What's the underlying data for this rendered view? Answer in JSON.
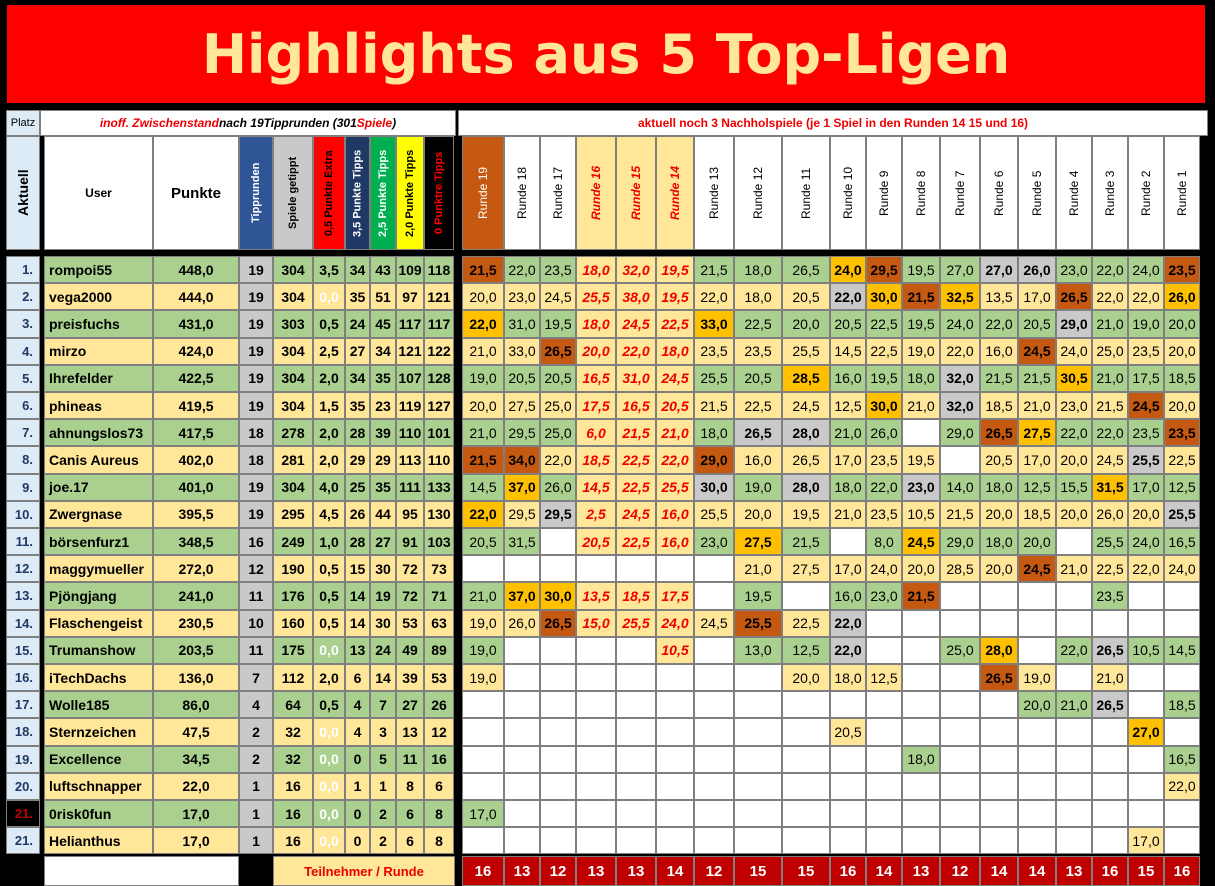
{
  "title": "Highlights aus 5 Top-Ligen",
  "header": {
    "platz": "Platz",
    "aktuell": "Aktuell",
    "status_note": "inoff. Zwischenstand nach 19Tipprunden (301 Spiele )",
    "status_note_parts": [
      "inoff. Zwischenstand",
      "nach 19Tipprunden (301",
      "Spiele",
      ")"
    ],
    "nachhol_note": "aktuell noch 3 Nachholspiele (je 1 Spiel in den Runden 14 15 und 16)",
    "user": "User",
    "punkte": "Punkte",
    "stat_columns": [
      "Tipprunden",
      "Spiele getippt",
      "0,5 Punkte Extra",
      "3,5 Punkte Tipps",
      "2,5 Punkte Tipps",
      "2,0 Punkte Tipps",
      "0 Punktre Tipps"
    ],
    "rounds": [
      "Runde 19",
      "Runde 18",
      "Runde 17",
      "Runde 16",
      "Runde 15",
      "Runde 14",
      "Runde 13",
      "Runde 12",
      "Runde 11",
      "Runde 10",
      "Runde 9",
      "Runde 8",
      "Runde 7",
      "Runde 6",
      "Runde 5",
      "Runde 4",
      "Runde 3",
      "Runde 2",
      "Runde 1"
    ],
    "highlighted_rounds": [
      "Runde 16",
      "Runde 15",
      "Runde 14"
    ]
  },
  "footer": {
    "label": "Teilnehmer / Runde",
    "counts": [
      "16",
      "13",
      "12",
      "13",
      "13",
      "14",
      "12",
      "15",
      "15",
      "16",
      "14",
      "13",
      "12",
      "14",
      "14",
      "13",
      "16",
      "15",
      "16"
    ]
  },
  "colors": {
    "title_bg": "#ff0000",
    "title_fg": "#ffe699",
    "green": "#a9d08e",
    "cream": "#ffe699",
    "gold": "#ffc000",
    "brown": "#c65911",
    "gray": "#c9c9c9",
    "darkred": "#c00000"
  },
  "rows": [
    {
      "rank": "1.",
      "user": "rompoi55",
      "points": "448,0",
      "stats": [
        "19",
        "304",
        "3,5",
        "34",
        "43",
        "109",
        "118"
      ],
      "rounds": [
        "21,5",
        "22,0",
        "23,5",
        "18,0",
        "32,0",
        "19,5",
        "21,5",
        "18,0",
        "26,5",
        "24,0",
        "29,5",
        "19,5",
        "27,0",
        "27,0",
        "26,0",
        "23,0",
        "22,0",
        "24,0",
        "23,5"
      ],
      "marks": [
        "B",
        "",
        "",
        "",
        "",
        "",
        "",
        "",
        "",
        "O",
        "B",
        "",
        "",
        "G",
        "G",
        "",
        "",
        "",
        "B"
      ]
    },
    {
      "rank": "2.",
      "user": "vega2000",
      "points": "444,0",
      "stats": [
        "19",
        "304",
        "0,0",
        "35",
        "51",
        "97",
        "121"
      ],
      "rounds": [
        "20,0",
        "23,0",
        "24,5",
        "25,5",
        "38,0",
        "19,5",
        "22,0",
        "18,0",
        "20,5",
        "22,0",
        "30,0",
        "21,5",
        "32,5",
        "13,5",
        "17,0",
        "26,5",
        "22,0",
        "22,0",
        "26,0"
      ],
      "marks": [
        "",
        "",
        "",
        "",
        "",
        "",
        "",
        "",
        "",
        "G",
        "O",
        "B",
        "O",
        "",
        "",
        "B",
        "",
        "",
        "O"
      ]
    },
    {
      "rank": "3.",
      "user": "preisfuchs",
      "points": "431,0",
      "stats": [
        "19",
        "303",
        "0,5",
        "24",
        "45",
        "117",
        "117"
      ],
      "rounds": [
        "22,0",
        "31,0",
        "19,5",
        "18,0",
        "24,5",
        "22,5",
        "33,0",
        "22,5",
        "20,0",
        "20,5",
        "22,5",
        "19,5",
        "24,0",
        "22,0",
        "20,5",
        "29,0",
        "21,0",
        "19,0",
        "20,0"
      ],
      "marks": [
        "O",
        "",
        "",
        "",
        "",
        "",
        "O",
        "",
        "",
        "",
        "",
        "",
        "",
        "",
        "",
        "G",
        "",
        "",
        ""
      ]
    },
    {
      "rank": "4.",
      "user": "mirzo",
      "points": "424,0",
      "stats": [
        "19",
        "304",
        "2,5",
        "27",
        "34",
        "121",
        "122"
      ],
      "rounds": [
        "21,0",
        "33,0",
        "26,5",
        "20,0",
        "22,0",
        "18,0",
        "23,5",
        "23,5",
        "25,5",
        "14,5",
        "22,5",
        "19,0",
        "22,0",
        "16,0",
        "24,5",
        "24,0",
        "25,0",
        "23,5",
        "20,0"
      ],
      "marks": [
        "",
        "",
        "B",
        "",
        "",
        "",
        "",
        "",
        "",
        "",
        "",
        "",
        "",
        "",
        "B",
        "",
        "",
        "",
        ""
      ]
    },
    {
      "rank": "5.",
      "user": "Ihrefelder",
      "points": "422,5",
      "stats": [
        "19",
        "304",
        "2,0",
        "34",
        "35",
        "107",
        "128"
      ],
      "rounds": [
        "19,0",
        "20,5",
        "20,5",
        "16,5",
        "31,0",
        "24,5",
        "25,5",
        "20,5",
        "28,5",
        "16,0",
        "19,5",
        "18,0",
        "32,0",
        "21,5",
        "21,5",
        "30,5",
        "21,0",
        "17,5",
        "18,5"
      ],
      "marks": [
        "",
        "",
        "",
        "",
        "",
        "",
        "",
        "",
        "O",
        "",
        "",
        "",
        "G",
        "",
        "",
        "O",
        "",
        "",
        ""
      ]
    },
    {
      "rank": "6.",
      "user": "phineas",
      "points": "419,5",
      "stats": [
        "19",
        "304",
        "1,5",
        "35",
        "23",
        "119",
        "127"
      ],
      "rounds": [
        "20,0",
        "27,5",
        "25,0",
        "17,5",
        "16,5",
        "20,5",
        "21,5",
        "22,5",
        "24,5",
        "12,5",
        "30,0",
        "21,0",
        "32,0",
        "18,5",
        "21,0",
        "23,0",
        "21,5",
        "24,5",
        "20,0"
      ],
      "marks": [
        "",
        "",
        "",
        "",
        "",
        "",
        "",
        "",
        "",
        "",
        "O",
        "",
        "G",
        "",
        "",
        "",
        "",
        "B",
        ""
      ]
    },
    {
      "rank": "7.",
      "user": "ahnungslos73",
      "points": "417,5",
      "stats": [
        "18",
        "278",
        "2,0",
        "28",
        "39",
        "110",
        "101"
      ],
      "rounds": [
        "21,0",
        "29,5",
        "25,0",
        "6,0",
        "21,5",
        "21,0",
        "18,0",
        "26,5",
        "28,0",
        "21,0",
        "26,0",
        "",
        "29,0",
        "26,5",
        "27,5",
        "22,0",
        "22,0",
        "23,5",
        "23,5"
      ],
      "marks": [
        "",
        "",
        "",
        "",
        "",
        "",
        "",
        "G",
        "G",
        "",
        "",
        "",
        "",
        "B",
        "O",
        "",
        "",
        "",
        "B"
      ]
    },
    {
      "rank": "8.",
      "user": "Canis Aureus",
      "points": "402,0",
      "stats": [
        "18",
        "281",
        "2,0",
        "29",
        "29",
        "113",
        "110"
      ],
      "rounds": [
        "21,5",
        "34,0",
        "22,0",
        "18,5",
        "22,5",
        "22,0",
        "29,0",
        "16,0",
        "26,5",
        "17,0",
        "23,5",
        "19,5",
        "",
        "20,5",
        "17,0",
        "20,0",
        "24,5",
        "25,5",
        "22,5"
      ],
      "marks": [
        "B",
        "B",
        "",
        "",
        "",
        "",
        "B",
        "",
        "",
        "",
        "",
        "",
        "",
        "",
        "",
        "",
        "",
        "G",
        ""
      ]
    },
    {
      "rank": "9.",
      "user": "joe.17",
      "points": "401,0",
      "stats": [
        "19",
        "304",
        "4,0",
        "25",
        "35",
        "111",
        "133"
      ],
      "rounds": [
        "14,5",
        "37,0",
        "26,0",
        "14,5",
        "22,5",
        "25,5",
        "30,0",
        "19,0",
        "28,0",
        "18,0",
        "22,0",
        "23,0",
        "14,0",
        "18,0",
        "12,5",
        "15,5",
        "31,5",
        "17,0",
        "12,5"
      ],
      "marks": [
        "",
        "O",
        "",
        "",
        "",
        "",
        "G",
        "",
        "G",
        "",
        "",
        "G",
        "",
        "",
        "",
        "",
        "O",
        "",
        ""
      ]
    },
    {
      "rank": "10.",
      "user": "Zwergnase",
      "points": "395,5",
      "stats": [
        "19",
        "295",
        "4,5",
        "26",
        "44",
        "95",
        "130"
      ],
      "rounds": [
        "22,0",
        "29,5",
        "29,5",
        "2,5",
        "24,5",
        "16,0",
        "25,5",
        "20,0",
        "19,5",
        "21,0",
        "23,5",
        "10,5",
        "21,5",
        "20,0",
        "18,5",
        "20,0",
        "26,0",
        "20,0",
        "25,5"
      ],
      "marks": [
        "O",
        "",
        "G",
        "",
        "",
        "",
        "",
        "",
        "",
        "",
        "",
        "",
        "",
        "",
        "",
        "",
        "",
        "",
        "G"
      ]
    },
    {
      "rank": "11.",
      "user": "börsenfurz1",
      "points": "348,5",
      "stats": [
        "16",
        "249",
        "1,0",
        "28",
        "27",
        "91",
        "103"
      ],
      "rounds": [
        "20,5",
        "31,5",
        "",
        "20,5",
        "22,5",
        "16,0",
        "23,0",
        "27,5",
        "21,5",
        "",
        "8,0",
        "24,5",
        "29,0",
        "18,0",
        "20,0",
        "",
        "25,5",
        "24,0",
        "16,5"
      ],
      "marks": [
        "",
        "",
        "",
        "",
        "",
        "",
        "",
        "O",
        "",
        "",
        "",
        "O",
        "",
        "",
        "",
        "",
        "",
        "",
        ""
      ]
    },
    {
      "rank": "12.",
      "user": "maggymueller",
      "points": "272,0",
      "stats": [
        "12",
        "190",
        "0,5",
        "15",
        "30",
        "72",
        "73"
      ],
      "rounds": [
        "",
        "",
        "",
        "",
        "",
        "",
        "",
        "21,0",
        "27,5",
        "17,0",
        "24,0",
        "20,0",
        "28,5",
        "20,0",
        "24,5",
        "21,0",
        "22,5",
        "22,0",
        "24,0"
      ],
      "marks": [
        "",
        "",
        "",
        "",
        "",
        "",
        "",
        "",
        "",
        "",
        "",
        "",
        "",
        "",
        "B",
        "",
        "",
        "",
        ""
      ]
    },
    {
      "rank": "13.",
      "user": "Pjöngjang",
      "points": "241,0",
      "stats": [
        "11",
        "176",
        "0,5",
        "14",
        "19",
        "72",
        "71"
      ],
      "rounds": [
        "21,0",
        "37,0",
        "30,0",
        "13,5",
        "18,5",
        "17,5",
        "",
        "19,5",
        "",
        "16,0",
        "23,0",
        "21,5",
        "",
        "",
        "",
        "",
        "23,5",
        "",
        ""
      ],
      "marks": [
        "",
        "O",
        "O",
        "",
        "",
        "",
        "",
        "",
        "",
        "",
        "",
        "B",
        "",
        "",
        "",
        "",
        "",
        "",
        ""
      ]
    },
    {
      "rank": "14.",
      "user": "Flaschengeist",
      "points": "230,5",
      "stats": [
        "10",
        "160",
        "0,5",
        "14",
        "30",
        "53",
        "63"
      ],
      "rounds": [
        "19,0",
        "26,0",
        "26,5",
        "15,0",
        "25,5",
        "24,0",
        "24,5",
        "25,5",
        "22,5",
        "22,0",
        "",
        "",
        "",
        "",
        "",
        "",
        "",
        "",
        ""
      ],
      "marks": [
        "",
        "",
        "B",
        "",
        "",
        "",
        "",
        "B",
        "",
        "G",
        "",
        "",
        "",
        "",
        "",
        "",
        "",
        "",
        ""
      ]
    },
    {
      "rank": "15.",
      "user": "Trumanshow",
      "points": "203,5",
      "stats": [
        "11",
        "175",
        "0,0",
        "13",
        "24",
        "49",
        "89"
      ],
      "rounds": [
        "19,0",
        "",
        "",
        "",
        "",
        "10,5",
        "",
        "13,0",
        "12,5",
        "22,0",
        "",
        "",
        "25,0",
        "28,0",
        "",
        "22,0",
        "26,5",
        "10,5",
        "14,5"
      ],
      "marks": [
        "",
        "",
        "",
        "",
        "",
        "",
        "",
        "",
        "",
        "G",
        "",
        "",
        "",
        "O",
        "",
        "",
        "G",
        "",
        ""
      ]
    },
    {
      "rank": "16.",
      "user": "iTechDachs",
      "points": "136,0",
      "stats": [
        "7",
        "112",
        "2,0",
        "6",
        "14",
        "39",
        "53"
      ],
      "rounds": [
        "19,0",
        "",
        "",
        "",
        "",
        "",
        "",
        "",
        "20,0",
        "18,0",
        "12,5",
        "",
        "",
        "26,5",
        "19,0",
        "",
        "21,0",
        "",
        ""
      ],
      "marks": [
        "",
        "",
        "",
        "",
        "",
        "",
        "",
        "",
        "",
        "",
        "",
        "",
        "",
        "B",
        "",
        "",
        "",
        "",
        ""
      ]
    },
    {
      "rank": "17.",
      "user": "Wolle185",
      "points": "86,0",
      "stats": [
        "4",
        "64",
        "0,5",
        "4",
        "7",
        "27",
        "26"
      ],
      "rounds": [
        "",
        "",
        "",
        "",
        "",
        "",
        "",
        "",
        "",
        "",
        "",
        "",
        "",
        "",
        "20,0",
        "21,0",
        "26,5",
        "",
        "18,5"
      ],
      "marks": [
        "",
        "",
        "",
        "",
        "",
        "",
        "",
        "",
        "",
        "",
        "",
        "",
        "",
        "",
        "",
        "",
        "G",
        "",
        ""
      ]
    },
    {
      "rank": "18.",
      "user": "Sternzeichen",
      "points": "47,5",
      "stats": [
        "2",
        "32",
        "0,0",
        "4",
        "3",
        "13",
        "12"
      ],
      "rounds": [
        "",
        "",
        "",
        "",
        "",
        "",
        "",
        "",
        "",
        "20,5",
        "",
        "",
        "",
        "",
        "",
        "",
        "",
        "27,0",
        ""
      ],
      "marks": [
        "",
        "",
        "",
        "",
        "",
        "",
        "",
        "",
        "",
        "",
        "",
        "",
        "",
        "",
        "",
        "",
        "",
        "O",
        ""
      ]
    },
    {
      "rank": "19.",
      "user": "Excellence",
      "points": "34,5",
      "stats": [
        "2",
        "32",
        "0,0",
        "0",
        "5",
        "11",
        "16"
      ],
      "rounds": [
        "",
        "",
        "",
        "",
        "",
        "",
        "",
        "",
        "",
        "",
        "",
        "18,0",
        "",
        "",
        "",
        "",
        "",
        "",
        "16,5"
      ],
      "marks": [
        "",
        "",
        "",
        "",
        "",
        "",
        "",
        "",
        "",
        "",
        "",
        "",
        "",
        "",
        "",
        "",
        "",
        "",
        ""
      ]
    },
    {
      "rank": "20.",
      "user": "luftschnapper",
      "points": "22,0",
      "stats": [
        "1",
        "16",
        "0,0",
        "1",
        "1",
        "8",
        "6"
      ],
      "rounds": [
        "",
        "",
        "",
        "",
        "",
        "",
        "",
        "",
        "",
        "",
        "",
        "",
        "",
        "",
        "",
        "",
        "",
        "",
        "22,0"
      ],
      "marks": [
        "",
        "",
        "",
        "",
        "",
        "",
        "",
        "",
        "",
        "",
        "",
        "",
        "",
        "",
        "",
        "",
        "",
        "",
        ""
      ]
    },
    {
      "rank": "21.",
      "user": "0risk0fun",
      "points": "17,0",
      "stats": [
        "1",
        "16",
        "0,0",
        "0",
        "2",
        "6",
        "8"
      ],
      "rounds": [
        "17,0",
        "",
        "",
        "",
        "",
        "",
        "",
        "",
        "",
        "",
        "",
        "",
        "",
        "",
        "",
        "",
        "",
        "",
        ""
      ],
      "marks": [
        "",
        "",
        "",
        "",
        "",
        "",
        "",
        "",
        "",
        "",
        "",
        "",
        "",
        "",
        "",
        "",
        "",
        "",
        ""
      ]
    },
    {
      "rank": "21.",
      "user": "Helianthus",
      "points": "17,0",
      "stats": [
        "1",
        "16",
        "0,0",
        "0",
        "2",
        "6",
        "8"
      ],
      "rounds": [
        "",
        "",
        "",
        "",
        "",
        "",
        "",
        "",
        "",
        "",
        "",
        "",
        "",
        "",
        "",
        "",
        "",
        "17,0",
        ""
      ],
      "marks": [
        "",
        "",
        "",
        "",
        "",
        "",
        "",
        "",
        "",
        "",
        "",
        "",
        "",
        "",
        "",
        "",
        "",
        "",
        ""
      ]
    }
  ]
}
